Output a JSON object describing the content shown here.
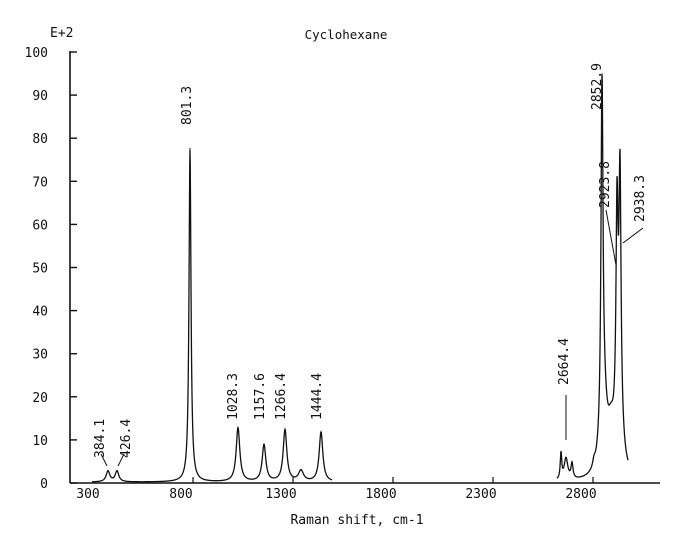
{
  "chart_data": {
    "type": "line",
    "title": "Cyclohexane",
    "xlabel": "Raman shift, cm-1",
    "ylabel": "",
    "y_multiplier_label": "E+2",
    "xlim": [
      300,
      3500
    ],
    "ylim": [
      0,
      100
    ],
    "x_ticks": [
      300,
      800,
      1300,
      1800,
      2300,
      2800
    ],
    "y_ticks": [
      0,
      10,
      20,
      30,
      40,
      50,
      60,
      70,
      80,
      90,
      100
    ],
    "grid": false,
    "legend": null,
    "peaks": [
      {
        "label": "384.1",
        "x": 384.1,
        "y": 2.5
      },
      {
        "label": "426.4",
        "x": 426.4,
        "y": 2.5
      },
      {
        "label": "801.3",
        "x": 801.3,
        "y": 77
      },
      {
        "label": "1028.3",
        "x": 1028.3,
        "y": 12.5
      },
      {
        "label": "1157.6",
        "x": 1157.6,
        "y": 8.5
      },
      {
        "label": "1266.4",
        "x": 1266.4,
        "y": 12
      },
      {
        "label": "1444.4",
        "x": 1444.4,
        "y": 11.5
      },
      {
        "label": "2664.4",
        "x": 2664.4,
        "y": 5
      },
      {
        "label": "2852.9",
        "x": 2852.9,
        "y": 82
      },
      {
        "label": "2923.8",
        "x": 2923.8,
        "y": 48
      },
      {
        "label": "2938.3",
        "x": 2938.3,
        "y": 55
      }
    ],
    "minor_peaks": [
      {
        "x": 1350,
        "y": 2.5
      },
      {
        "x": 2630,
        "y": 6
      },
      {
        "x": 2690,
        "y": 3.5
      },
      {
        "x": 2800,
        "y": 1.5
      }
    ]
  }
}
